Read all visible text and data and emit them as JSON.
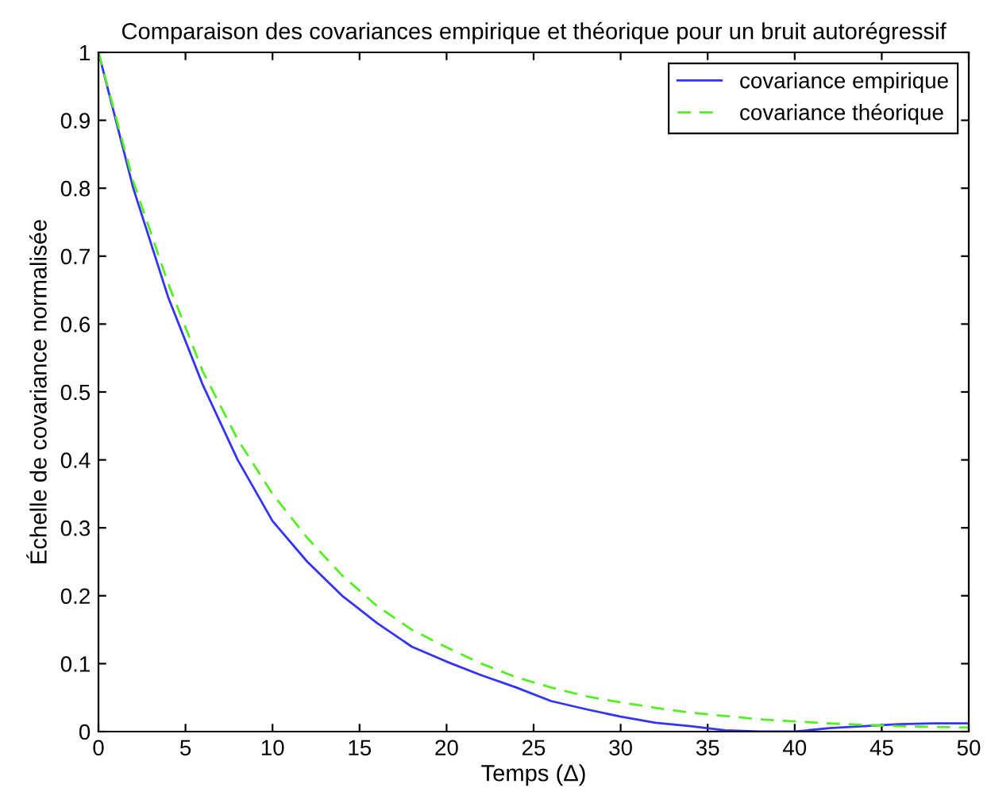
{
  "chart_data": {
    "type": "line",
    "title": "Comparaison des covariances empirique et théorique pour un bruit autorégressif",
    "xlabel": "Temps (Δ)",
    "ylabel": "Échelle de covariance normalisée",
    "xlim": [
      0,
      50
    ],
    "ylim": [
      0,
      1
    ],
    "xticks": [
      0,
      5,
      10,
      15,
      20,
      25,
      30,
      35,
      40,
      45,
      50
    ],
    "yticks": [
      0,
      0.1,
      0.2,
      0.3,
      0.4,
      0.5,
      0.6,
      0.7,
      0.8,
      0.9,
      1
    ],
    "grid": false,
    "legend": "top right",
    "x": [
      0,
      2,
      4,
      6,
      8,
      10,
      12,
      14,
      16,
      18,
      20,
      22,
      24,
      26,
      28,
      30,
      32,
      34,
      36,
      38,
      40,
      42,
      44,
      46,
      48,
      50
    ],
    "series": [
      {
        "name": "covariance empirique",
        "color": "#3333ff",
        "line_style": "solid",
        "values": [
          1,
          0.8,
          0.64,
          0.51,
          0.4,
          0.31,
          0.25,
          0.2,
          0.16,
          0.125,
          0.103,
          0.083,
          0.065,
          0.045,
          0.033,
          0.022,
          0.013,
          0.008,
          0.002,
          0,
          0,
          0.005,
          0.008,
          0.011,
          0.012,
          0.012
        ]
      },
      {
        "name": "covariance théorique",
        "color": "#55ee22",
        "line_style": "dashed",
        "values": [
          1,
          0.81,
          0.66,
          0.53,
          0.43,
          0.35,
          0.285,
          0.23,
          0.185,
          0.15,
          0.124,
          0.1,
          0.08,
          0.065,
          0.052,
          0.043,
          0.035,
          0.028,
          0.023,
          0.018,
          0.015,
          0.012,
          0.01,
          0.008,
          0.007,
          0.006
        ]
      }
    ]
  }
}
